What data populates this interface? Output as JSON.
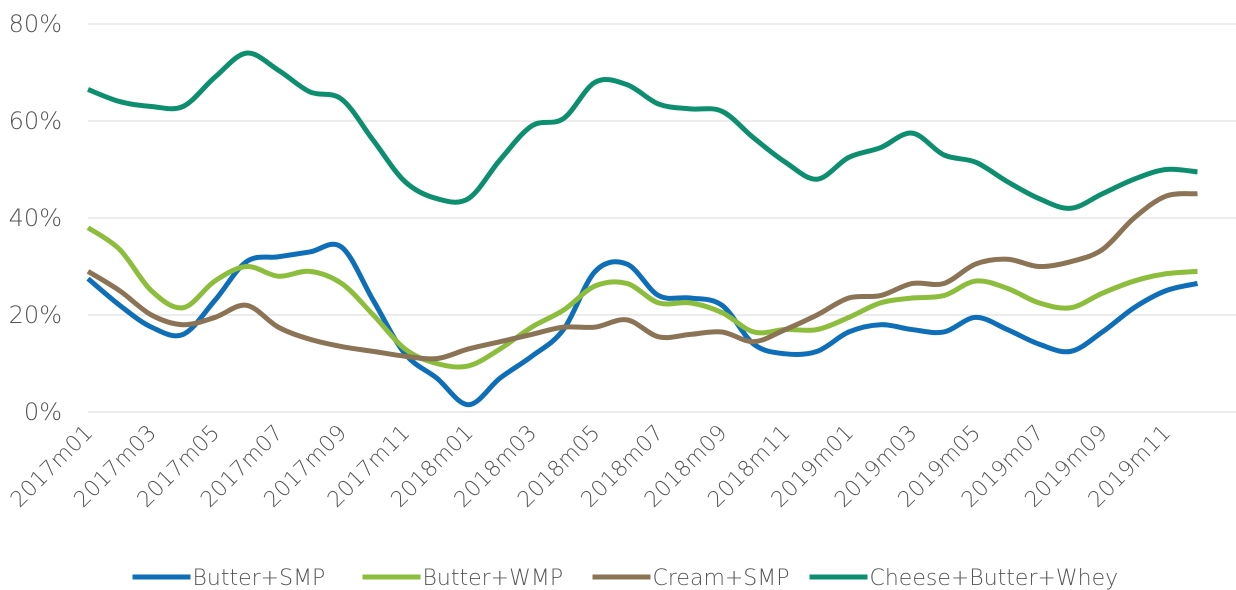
{
  "chart_data": {
    "type": "line",
    "categories": [
      "2017m01",
      null,
      "2017m03",
      null,
      "2017m05",
      null,
      "2017m07",
      null,
      "2017m09",
      null,
      "2017m11",
      null,
      "2018m01",
      null,
      "2018m03",
      null,
      "2018m05",
      null,
      "2018m07",
      null,
      "2018m09",
      null,
      "2018m11",
      null,
      "2019m01",
      null,
      "2019m03",
      null,
      "2019m05",
      null,
      "2019m07",
      null,
      "2019m09",
      null,
      "2019m11",
      null
    ],
    "series": [
      {
        "name": "Butter+SMP",
        "color": "#0e6eb8",
        "values": [
          27.5,
          22,
          17.5,
          16,
          23,
          31,
          32,
          33,
          34,
          23,
          12,
          7,
          1.5,
          7,
          11.5,
          17,
          29,
          30.5,
          24,
          23.5,
          22,
          14,
          12,
          12.5,
          16.5,
          18,
          17,
          16.5,
          19.5,
          17,
          14,
          12.5,
          16.5,
          21.5,
          25,
          26.5
        ]
      },
      {
        "name": "Butter+WMP",
        "color": "#8dbd3c",
        "values": [
          38,
          33.5,
          25,
          21.5,
          27,
          30,
          28,
          29,
          26.5,
          20,
          13,
          10,
          9.5,
          13,
          17.5,
          21,
          26,
          26.5,
          22.5,
          22.5,
          20.5,
          16.5,
          17,
          17,
          19.5,
          22.5,
          23.5,
          24,
          27,
          25.5,
          22.5,
          21.5,
          24.5,
          27,
          28.5,
          29
        ]
      },
      {
        "name": "Cream+SMP",
        "color": "#8b7355",
        "values": [
          29,
          25,
          20,
          18,
          19.5,
          22,
          17.5,
          15,
          13.5,
          12.5,
          11.5,
          11,
          13,
          14.5,
          16,
          17.5,
          17.5,
          19,
          15.5,
          16,
          16.5,
          14.5,
          17,
          20,
          23.5,
          24,
          26.5,
          26.5,
          30.5,
          31.5,
          30,
          31,
          33.5,
          40,
          44.5,
          45
        ]
      },
      {
        "name": "Cheese+Butter+Whey",
        "color": "#0d8f6f",
        "values": [
          66.5,
          64,
          63,
          63,
          69,
          74,
          70.5,
          66,
          64.5,
          56,
          47.5,
          44,
          44,
          52,
          59,
          60.5,
          68,
          67.5,
          63.5,
          62.5,
          62,
          56.5,
          51.5,
          48,
          52.5,
          54.5,
          57.5,
          53,
          51.5,
          47.5,
          44,
          42,
          45,
          48,
          50,
          49.5
        ]
      }
    ],
    "ylim": [
      0,
      80
    ],
    "yticks": [
      {
        "value": 0,
        "label": "0%"
      },
      {
        "value": 20,
        "label": "20%"
      },
      {
        "value": 40,
        "label": "40%"
      },
      {
        "value": 60,
        "label": "60%"
      },
      {
        "value": 80,
        "label": "80%"
      }
    ],
    "grid": true,
    "legend": "bottom"
  }
}
